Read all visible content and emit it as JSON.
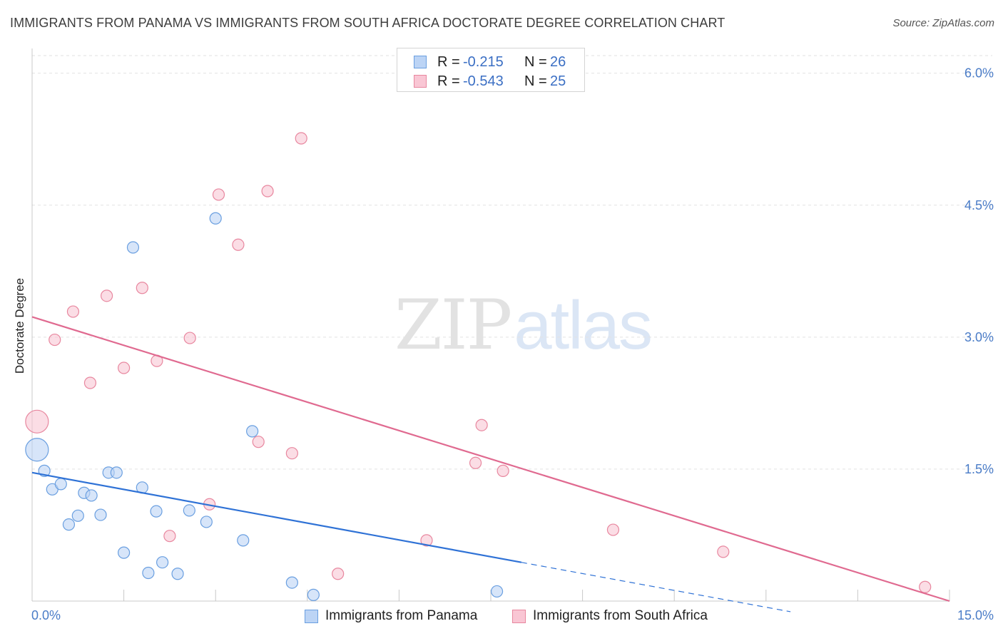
{
  "title": "IMMIGRANTS FROM PANAMA VS IMMIGRANTS FROM SOUTH AFRICA DOCTORATE DEGREE CORRELATION CHART",
  "source": "Source: ZipAtlas.com",
  "watermark": {
    "zip": "ZIP",
    "atlas": "atlas"
  },
  "colors": {
    "blue": "#6a9fe0",
    "blue_fill": "#bcd4f5",
    "blue_line": "#2f72d6",
    "pink": "#e8879f",
    "pink_fill": "#f9c6d4",
    "pink_line": "#e06a90",
    "tick": "#4a7cc7",
    "grid": "#e2e2e2"
  },
  "legend": {
    "rows": [
      {
        "r_label": "R =",
        "r_value": "-0.215",
        "n_label": "N =",
        "n_value": "26"
      },
      {
        "r_label": "R =",
        "r_value": "-0.543",
        "n_label": "N =",
        "n_value": "25"
      }
    ]
  },
  "chart_data": {
    "type": "scatter",
    "title": "IMMIGRANTS FROM PANAMA VS IMMIGRANTS FROM SOUTH AFRICA DOCTORATE DEGREE CORRELATION CHART",
    "xlabel": "",
    "ylabel": "Doctorate Degree",
    "xlim": [
      0,
      15
    ],
    "ylim": [
      0,
      6.2
    ],
    "x_tick_labels": [
      "0.0%",
      "15.0%"
    ],
    "y_ticks": [
      1.5,
      3.0,
      4.5,
      6.0
    ],
    "y_tick_labels": [
      "1.5%",
      "3.0%",
      "4.5%",
      "6.0%"
    ],
    "grid": true,
    "series": [
      {
        "name": "Immigrants from Panama",
        "color": "blue",
        "points": [
          {
            "x": 0.08,
            "y": 1.72,
            "big": true
          },
          {
            "x": 0.2,
            "y": 1.48
          },
          {
            "x": 0.33,
            "y": 1.27
          },
          {
            "x": 0.47,
            "y": 1.33
          },
          {
            "x": 0.6,
            "y": 0.87
          },
          {
            "x": 0.75,
            "y": 0.97
          },
          {
            "x": 0.85,
            "y": 1.23
          },
          {
            "x": 0.97,
            "y": 1.2
          },
          {
            "x": 1.12,
            "y": 0.98
          },
          {
            "x": 1.25,
            "y": 1.46
          },
          {
            "x": 1.38,
            "y": 1.46
          },
          {
            "x": 1.5,
            "y": 0.55
          },
          {
            "x": 1.65,
            "y": 4.02
          },
          {
            "x": 1.8,
            "y": 1.29
          },
          {
            "x": 1.9,
            "y": 0.32
          },
          {
            "x": 2.03,
            "y": 1.02
          },
          {
            "x": 2.13,
            "y": 0.44
          },
          {
            "x": 2.38,
            "y": 0.31
          },
          {
            "x": 2.57,
            "y": 1.03
          },
          {
            "x": 2.85,
            "y": 0.9
          },
          {
            "x": 3.0,
            "y": 4.35
          },
          {
            "x": 3.45,
            "y": 0.69
          },
          {
            "x": 3.6,
            "y": 1.93
          },
          {
            "x": 4.25,
            "y": 0.21
          },
          {
            "x": 4.6,
            "y": 0.07
          },
          {
            "x": 7.6,
            "y": 0.11
          }
        ]
      },
      {
        "name": "Immigrants from South Africa",
        "color": "pink",
        "points": [
          {
            "x": 0.08,
            "y": 2.04,
            "big": true
          },
          {
            "x": 0.37,
            "y": 2.97
          },
          {
            "x": 0.67,
            "y": 3.29
          },
          {
            "x": 0.95,
            "y": 2.48
          },
          {
            "x": 1.22,
            "y": 3.47
          },
          {
            "x": 1.5,
            "y": 2.65
          },
          {
            "x": 1.8,
            "y": 3.56
          },
          {
            "x": 2.04,
            "y": 2.73
          },
          {
            "x": 2.25,
            "y": 0.74
          },
          {
            "x": 2.58,
            "y": 2.99
          },
          {
            "x": 2.9,
            "y": 1.1
          },
          {
            "x": 3.05,
            "y": 4.62
          },
          {
            "x": 3.37,
            "y": 4.05
          },
          {
            "x": 3.7,
            "y": 1.81
          },
          {
            "x": 3.85,
            "y": 4.66
          },
          {
            "x": 4.25,
            "y": 1.68
          },
          {
            "x": 4.4,
            "y": 5.26
          },
          {
            "x": 5.0,
            "y": 0.31
          },
          {
            "x": 6.45,
            "y": 0.69
          },
          {
            "x": 7.25,
            "y": 1.57
          },
          {
            "x": 7.35,
            "y": 2.0
          },
          {
            "x": 7.7,
            "y": 1.48
          },
          {
            "x": 9.5,
            "y": 0.81
          },
          {
            "x": 11.3,
            "y": 0.56
          },
          {
            "x": 14.6,
            "y": 0.16
          }
        ]
      }
    ],
    "trendlines": [
      {
        "series": "Immigrants from Panama",
        "x0": 0,
        "y0": 1.46,
        "x1": 8.0,
        "y1": 0.44,
        "dashed_to_x": 12.4
      },
      {
        "series": "Immigrants from South Africa",
        "x0": 0,
        "y0": 3.23,
        "x1": 15.0,
        "y1": 0.0
      }
    ]
  }
}
